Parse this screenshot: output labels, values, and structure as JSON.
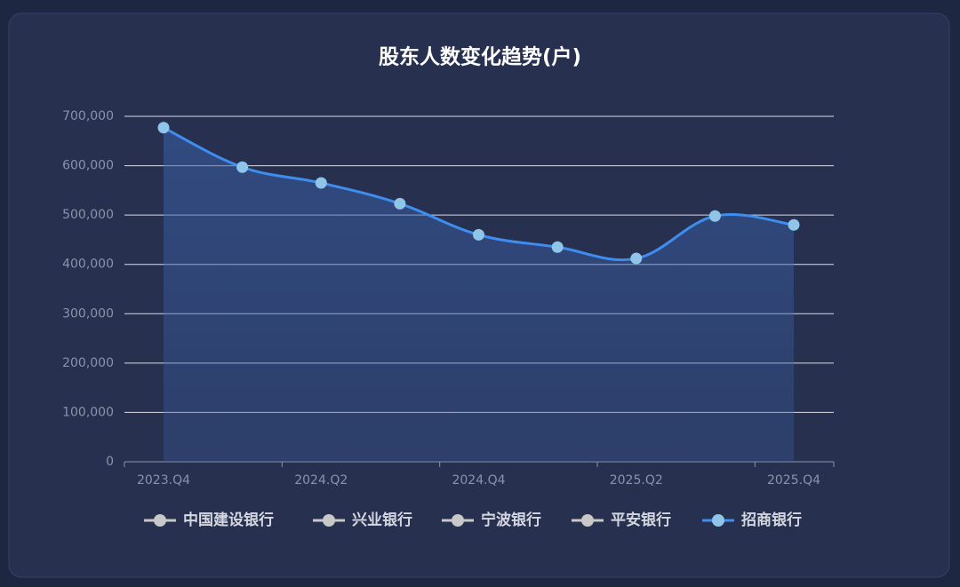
{
  "chart_data": {
    "type": "line",
    "title": "股东人数变化趋势(户)",
    "categories": [
      "2023.Q4",
      null,
      "2024.Q2",
      null,
      "2024.Q4",
      null,
      "2025.Q2",
      null,
      "2025.Q4"
    ],
    "series": [
      {
        "name": "招商银行",
        "color": "#3d8ef0",
        "values": [
          677000,
          597000,
          565000,
          523000,
          460000,
          435000,
          412000,
          498000,
          480000
        ]
      }
    ],
    "hidden_series": [
      "中国建设银行",
      "兴业银行",
      "宁波银行",
      "平安银行"
    ],
    "hidden_color": "#c8c8c8",
    "ylim": [
      0,
      700000
    ],
    "yticks": [
      0,
      {
        "value": 100000,
        "label": "100,000"
      },
      {
        "value": 200000,
        "label": "200,000"
      },
      {
        "value": 300000,
        "label": "300,000"
      },
      {
        "value": 400000,
        "label": "400,000"
      },
      {
        "value": 500000,
        "label": "500,000"
      },
      {
        "value": 600000,
        "label": "600,000"
      },
      {
        "value": 700000,
        "label": "700,000"
      }
    ],
    "grid": true
  }
}
